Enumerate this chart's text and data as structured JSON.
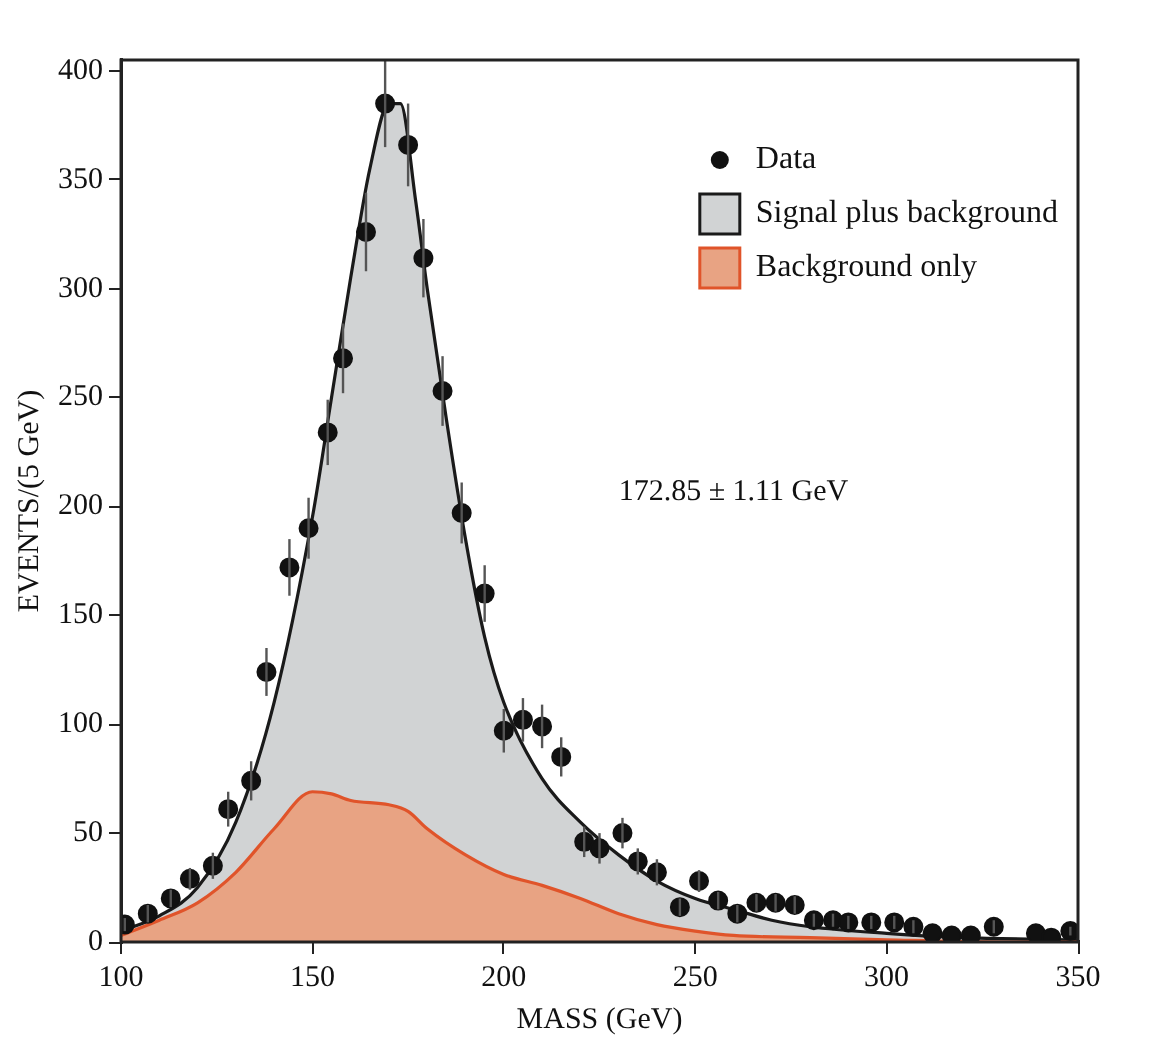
{
  "chart_data": {
    "type": "scatter",
    "xlabel": "MASS (GeV)",
    "ylabel": "EVENTS/(5 GeV)",
    "xlim": [
      100,
      350
    ],
    "ylim": [
      0,
      405
    ],
    "xticks": [
      100,
      150,
      200,
      250,
      300,
      350
    ],
    "yticks": [
      0,
      50,
      100,
      150,
      200,
      250,
      300,
      350,
      400
    ],
    "grid": false,
    "legend": "top right",
    "annotations": [
      "172.85 ± 1.11 GeV"
    ],
    "series": [
      {
        "name": "Signal plus background",
        "type": "area",
        "color": "#d1d3d4",
        "x": [
          100,
          110,
          120,
          130,
          140,
          150,
          155,
          160,
          165,
          170,
          173,
          177,
          180,
          185,
          190,
          195,
          200,
          210,
          220,
          230,
          240,
          250,
          260,
          270,
          280,
          300,
          320,
          350
        ],
        "values": [
          5,
          12,
          25,
          55,
          110,
          195,
          250,
          305,
          355,
          385,
          385,
          340,
          300,
          240,
          185,
          140,
          110,
          75,
          55,
          40,
          28,
          20,
          15,
          10,
          7,
          4,
          2,
          1
        ]
      },
      {
        "name": "Background only",
        "type": "area",
        "color": "#e8a383",
        "x": [
          100,
          110,
          120,
          130,
          140,
          150,
          155,
          160,
          170,
          175,
          180,
          190,
          200,
          210,
          220,
          230,
          240,
          250,
          260,
          280,
          300,
          330,
          350
        ],
        "values": [
          3,
          10,
          18,
          32,
          52,
          69,
          68,
          65,
          63,
          60,
          52,
          40,
          31,
          26,
          20,
          13,
          8,
          5,
          3,
          2,
          1,
          0,
          0
        ]
      },
      {
        "name": "Data",
        "color": "#111111",
        "x": [
          101,
          107,
          113,
          118,
          124,
          128,
          134,
          138,
          144,
          149,
          154,
          158,
          164,
          169,
          175,
          179,
          184,
          189,
          195,
          200,
          205,
          210,
          215,
          221,
          225,
          231,
          235,
          240,
          246,
          251,
          256,
          261,
          266,
          271,
          276,
          281,
          286,
          290,
          296,
          302,
          307,
          312,
          317,
          322,
          328,
          339,
          343,
          348
        ],
        "values": [
          8,
          13,
          20,
          29,
          35,
          61,
          74,
          124,
          172,
          190,
          234,
          268,
          326,
          385,
          366,
          314,
          253,
          197,
          160,
          97,
          102,
          99,
          85,
          46,
          43,
          50,
          37,
          32,
          16,
          28,
          19,
          13,
          18,
          18,
          17,
          10,
          10,
          9,
          9,
          9,
          7,
          4,
          3,
          3,
          7,
          4,
          2,
          5
        ],
        "errors": [
          3,
          4,
          4,
          5,
          6,
          8,
          9,
          11,
          13,
          14,
          15,
          16,
          18,
          20,
          19,
          18,
          16,
          14,
          13,
          10,
          10,
          10,
          9,
          7,
          7,
          7,
          6,
          6,
          4,
          5,
          4,
          4,
          4,
          4,
          4,
          3,
          3,
          3,
          3,
          3,
          3,
          null,
          null,
          null,
          3,
          null,
          null,
          2
        ]
      }
    ]
  }
}
